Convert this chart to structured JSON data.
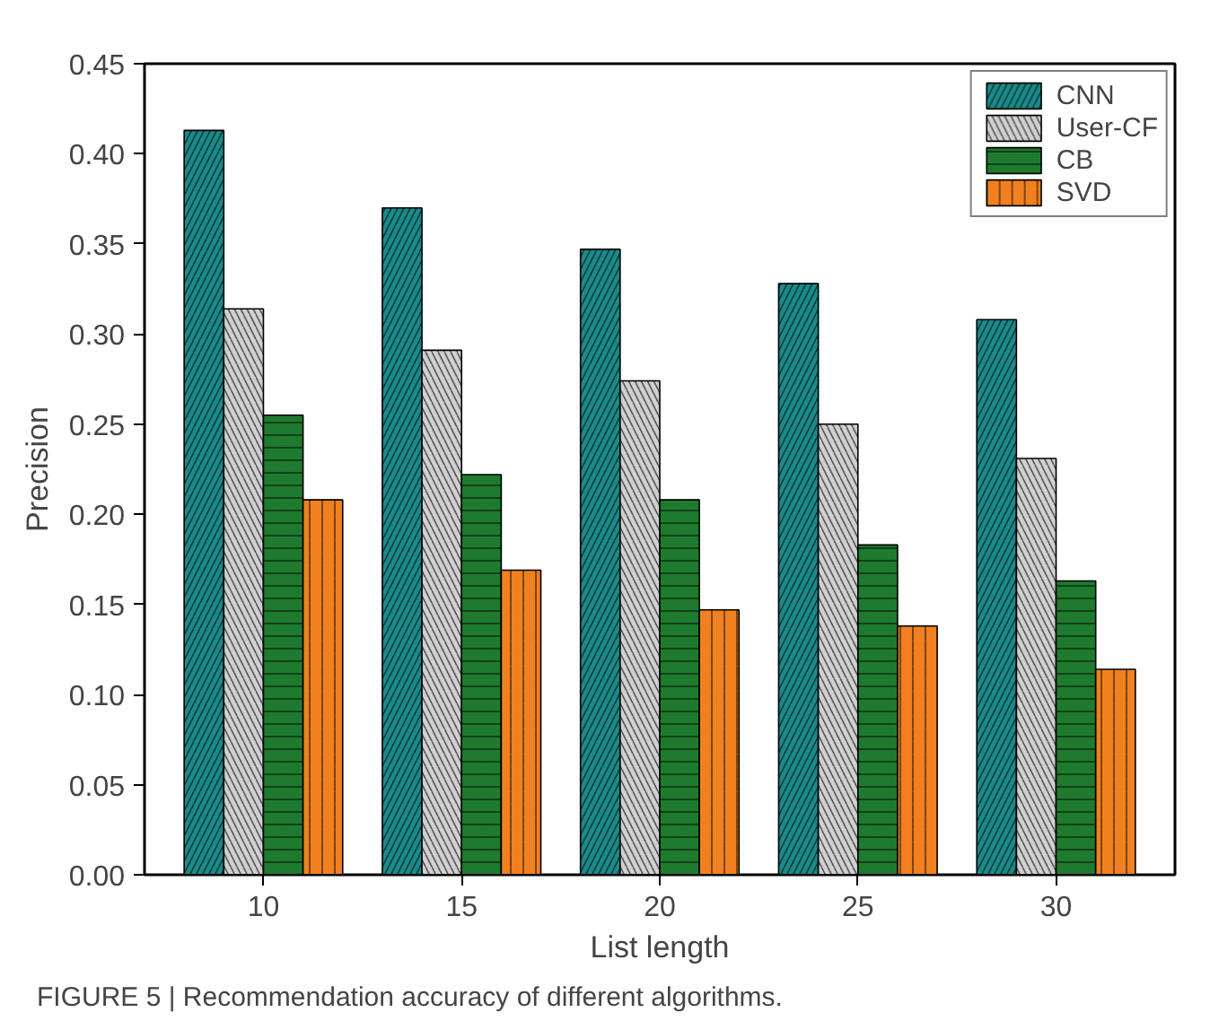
{
  "chart_data": {
    "type": "bar",
    "xlabel": "List length",
    "ylabel": "Precision",
    "categories": [
      "10",
      "15",
      "20",
      "25",
      "30"
    ],
    "series": [
      {
        "name": "CNN",
        "color": "#1a8a8a",
        "values": [
          0.413,
          0.37,
          0.347,
          0.328,
          0.308
        ]
      },
      {
        "name": "User-CF",
        "color": "#d0d0d0",
        "values": [
          0.314,
          0.291,
          0.274,
          0.25,
          0.231
        ]
      },
      {
        "name": "CB",
        "color": "#1e7a2e",
        "values": [
          0.255,
          0.222,
          0.208,
          0.183,
          0.163
        ]
      },
      {
        "name": "SVD",
        "color": "#f08020",
        "values": [
          0.208,
          0.169,
          0.147,
          0.138,
          0.114
        ]
      }
    ],
    "ylim": [
      0,
      0.45
    ],
    "yticks": [
      {
        "value": 0,
        "label": "0.00"
      },
      {
        "value": 0.05,
        "label": "0.05"
      },
      {
        "value": 0.1,
        "label": "0.10"
      },
      {
        "value": 0.15,
        "label": "0.15"
      },
      {
        "value": 0.2,
        "label": "0.20"
      },
      {
        "value": 0.25,
        "label": "0.25"
      },
      {
        "value": 0.3,
        "label": "0.30"
      },
      {
        "value": 0.35,
        "label": "0.35"
      },
      {
        "value": 0.4,
        "label": "0.40"
      },
      {
        "value": 0.45,
        "label": "0.45"
      }
    ],
    "legend": "top right",
    "grid": false,
    "annotations": [
      "FIGURE 5 | Recommendation accuracy of different algorithms."
    ]
  }
}
